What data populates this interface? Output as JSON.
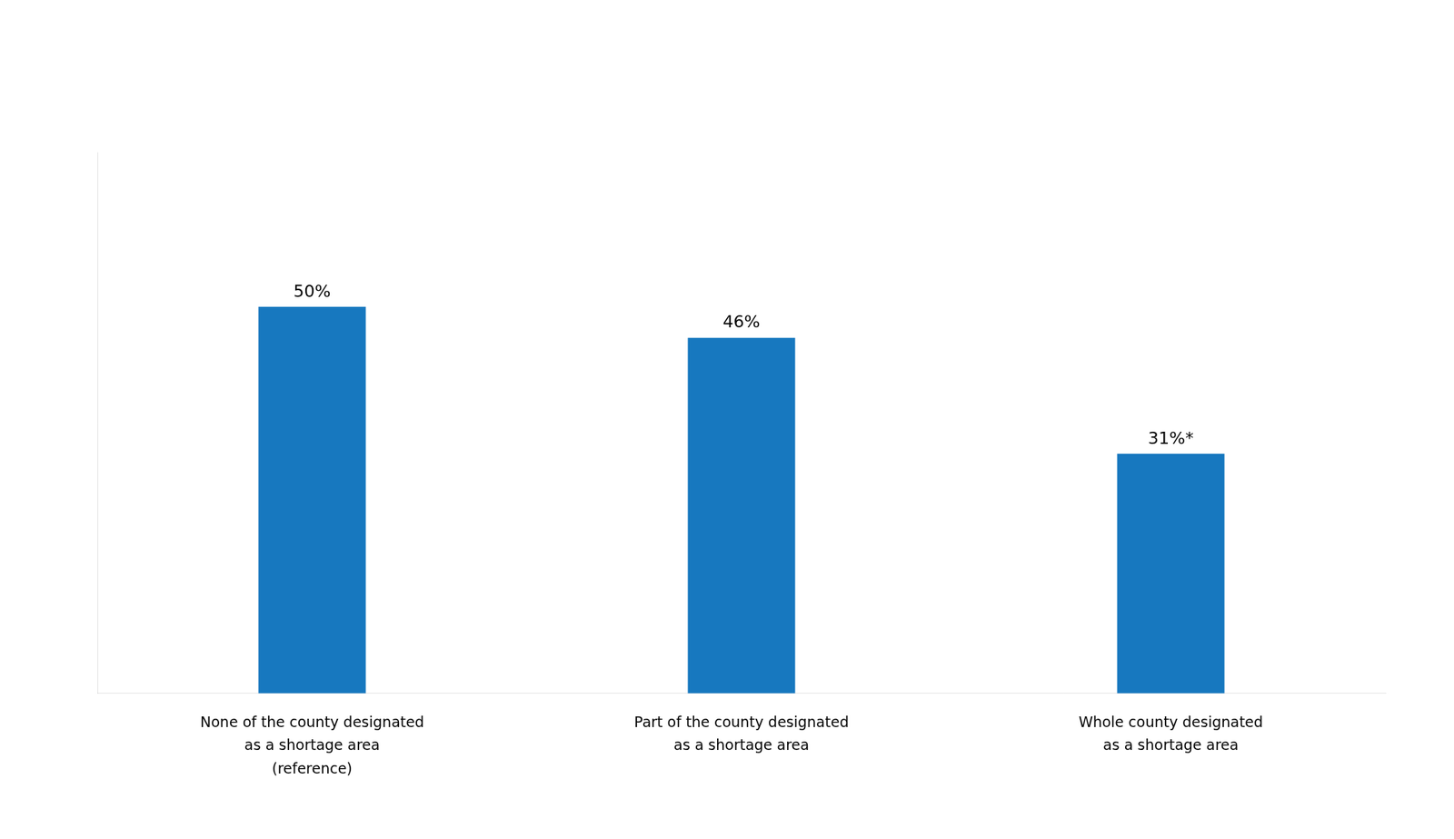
{
  "chart_data": {
    "type": "bar",
    "categories": [
      "None of the county designated\nas a shortage area\n(reference)",
      "Part of the county designated\nas a shortage area",
      "Whole county designated\nas a shortage area"
    ],
    "values": [
      50,
      46,
      31
    ],
    "value_labels": [
      "50%",
      "46%",
      "31%*"
    ],
    "data_labels": true,
    "color": "#1778BF",
    "ylim": [
      0,
      70
    ],
    "grid": false,
    "tick_labels": "x"
  }
}
